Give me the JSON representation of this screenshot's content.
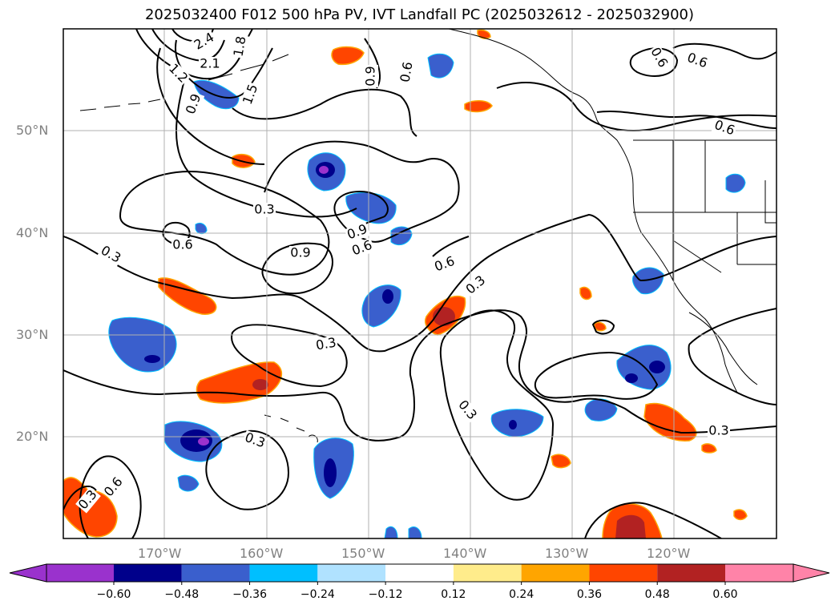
{
  "title": "2025032400 F012 500 hPa PV, IVT Landfall PC (2025032612 - 2025032900)",
  "lat_labels": [
    "50°N",
    "40°N",
    "30°N",
    "20°N"
  ],
  "lon_labels": [
    "170°W",
    "160°W",
    "150°W",
    "140°W",
    "130°W",
    "120°W"
  ],
  "contour_labels": [
    "2.4",
    "1.8",
    "2.1",
    "1.2",
    "1.5",
    "0.9",
    "0.9",
    "0.6",
    "0.6",
    "0.6",
    "0.6",
    "0.3",
    "0.6",
    "0.3",
    "0.9",
    "0.9",
    "0.6",
    "0.6",
    "0.3",
    "0.3",
    "0.3",
    "0.3",
    "0.3",
    "0.3",
    "0.6"
  ],
  "colorbar": {
    "ticks": [
      "−0.60",
      "−0.48",
      "−0.36",
      "−0.24",
      "−0.12",
      "0.12",
      "0.24",
      "0.36",
      "0.48",
      "0.60"
    ],
    "colors": [
      "#9a32cd",
      "#00008b",
      "#3a5fcd",
      "#00bfff",
      "#b0e2ff",
      "#ffffff",
      "#ffec8b",
      "#ffa500",
      "#ff4500",
      "#b22222",
      "#ff83a8"
    ]
  },
  "map_extent": {
    "lon_range": [
      -180,
      -110
    ],
    "lat_range": [
      10,
      60
    ]
  }
}
